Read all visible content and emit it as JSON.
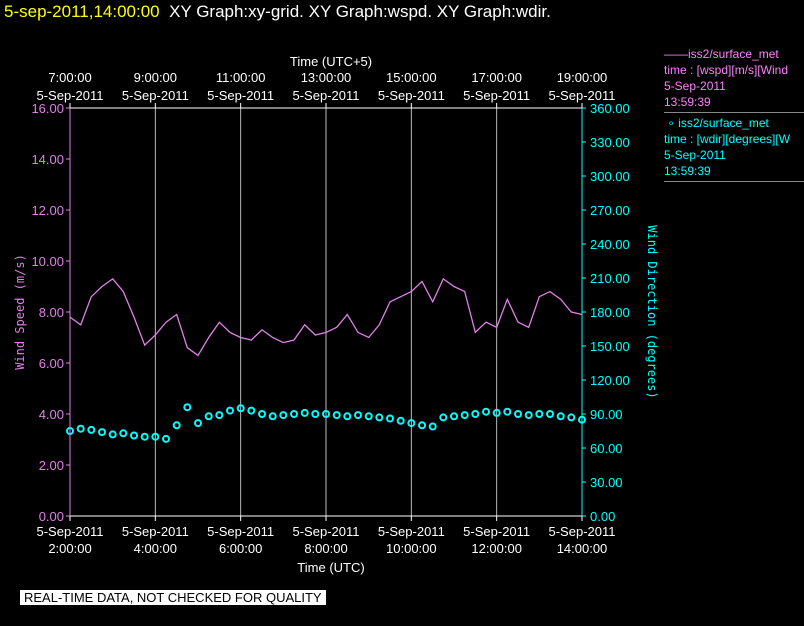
{
  "header": {
    "timestamp": "5-sep-2011,14:00:00",
    "graphs": "XY Graph:xy-grid.  XY Graph:wspd.  XY Graph:wdir."
  },
  "legend": {
    "series1": {
      "title": "iss2/surface_met",
      "line1": "time : [wspd][m/s][Wind",
      "line2": "5-Sep-2011",
      "line3": "13:59:39"
    },
    "series2": {
      "title": "iss2/surface_met",
      "line1": "time : [wdir][degrees][W",
      "line2": "5-Sep-2011",
      "line3": "13:59:39"
    }
  },
  "disclaimer": "REAL-TIME DATA, NOT CHECKED FOR QUALITY",
  "colors": {
    "wspd": "#e080e8",
    "wdir": "#00ffff",
    "axis": "#ffffff"
  },
  "chart_data": {
    "type": "line",
    "top_axis_label": "Time (UTC+5)",
    "xlabel": "Time (UTC)",
    "ylabel_left": "Wind Speed (m/s)",
    "ylabel_right": "Wind Direction (degrees)",
    "xlim_hours": [
      2.0,
      14.0
    ],
    "ylim_left": [
      0,
      16
    ],
    "ylim_right": [
      0,
      360
    ],
    "grid": "vertical",
    "left_ticks": [
      "0.00",
      "2.00",
      "4.00",
      "6.00",
      "8.00",
      "10.00",
      "12.00",
      "14.00",
      "16.00"
    ],
    "right_ticks": [
      "0.00",
      "30.00",
      "60.00",
      "90.00",
      "120.00",
      "150.00",
      "180.00",
      "210.00",
      "240.00",
      "270.00",
      "300.00",
      "330.00",
      "360.00"
    ],
    "bottom_ticks": [
      {
        "h": 2,
        "date": "5-Sep-2011",
        "time": "2:00:00"
      },
      {
        "h": 4,
        "date": "5-Sep-2011",
        "time": "4:00:00"
      },
      {
        "h": 6,
        "date": "5-Sep-2011",
        "time": "6:00:00"
      },
      {
        "h": 8,
        "date": "5-Sep-2011",
        "time": "8:00:00"
      },
      {
        "h": 10,
        "date": "5-Sep-2011",
        "time": "10:00:00"
      },
      {
        "h": 12,
        "date": "5-Sep-2011",
        "time": "12:00:00"
      },
      {
        "h": 14,
        "date": "5-Sep-2011",
        "time": "14:00:00"
      }
    ],
    "top_ticks": [
      {
        "h": 2,
        "time": "7:00:00",
        "date": "5-Sep-2011"
      },
      {
        "h": 4,
        "time": "9:00:00",
        "date": "5-Sep-2011"
      },
      {
        "h": 6,
        "time": "11:00:00",
        "date": "5-Sep-2011"
      },
      {
        "h": 8,
        "time": "13:00:00",
        "date": "5-Sep-2011"
      },
      {
        "h": 10,
        "time": "15:00:00",
        "date": "5-Sep-2011"
      },
      {
        "h": 12,
        "time": "17:00:00",
        "date": "5-Sep-2011"
      },
      {
        "h": 14,
        "time": "19:00:00",
        "date": "5-Sep-2011"
      }
    ],
    "grid_hours": [
      4,
      6,
      8,
      10,
      12
    ],
    "series": [
      {
        "name": "iss2/surface_met wspd",
        "axis": "left",
        "style": "line",
        "x_hours": [
          2.0,
          2.25,
          2.5,
          2.75,
          3.0,
          3.25,
          3.5,
          3.75,
          4.0,
          4.25,
          4.5,
          4.75,
          5.0,
          5.25,
          5.5,
          5.75,
          6.0,
          6.25,
          6.5,
          6.75,
          7.0,
          7.25,
          7.5,
          7.75,
          8.0,
          8.25,
          8.5,
          8.75,
          9.0,
          9.25,
          9.5,
          9.75,
          10.0,
          10.25,
          10.5,
          10.75,
          11.0,
          11.25,
          11.5,
          11.75,
          12.0,
          12.25,
          12.5,
          12.75,
          13.0,
          13.25,
          13.5,
          13.75,
          14.0
        ],
        "values": [
          7.8,
          7.5,
          8.6,
          9.0,
          9.3,
          8.8,
          7.8,
          6.7,
          7.1,
          7.6,
          7.9,
          6.6,
          6.3,
          7.0,
          7.6,
          7.2,
          7.0,
          6.9,
          7.3,
          7.0,
          6.8,
          6.9,
          7.5,
          7.1,
          7.2,
          7.4,
          7.9,
          7.2,
          7.0,
          7.5,
          8.4,
          8.6,
          8.8,
          9.2,
          8.4,
          9.3,
          9.0,
          8.8,
          7.2,
          7.6,
          7.4,
          8.5,
          7.6,
          7.4,
          8.6,
          8.8,
          8.5,
          8.0,
          7.9
        ]
      },
      {
        "name": "iss2/surface_met wdir",
        "axis": "right",
        "style": "markers",
        "x_hours": [
          2.0,
          2.25,
          2.5,
          2.75,
          3.0,
          3.25,
          3.5,
          3.75,
          4.0,
          4.25,
          4.5,
          4.75,
          5.0,
          5.25,
          5.5,
          5.75,
          6.0,
          6.25,
          6.5,
          6.75,
          7.0,
          7.25,
          7.5,
          7.75,
          8.0,
          8.25,
          8.5,
          8.75,
          9.0,
          9.25,
          9.5,
          9.75,
          10.0,
          10.25,
          10.5,
          10.75,
          11.0,
          11.25,
          11.5,
          11.75,
          12.0,
          12.25,
          12.5,
          12.75,
          13.0,
          13.25,
          13.5,
          13.75,
          14.0
        ],
        "values": [
          75,
          77,
          76,
          74,
          72,
          73,
          71,
          70,
          70,
          68,
          80,
          96,
          82,
          88,
          89,
          93,
          95,
          93,
          90,
          88,
          89,
          90,
          91,
          90,
          90,
          89,
          88,
          89,
          88,
          87,
          86,
          84,
          82,
          80,
          79,
          87,
          88,
          89,
          90,
          92,
          91,
          92,
          90,
          89,
          90,
          90,
          88,
          87,
          85
        ]
      }
    ]
  }
}
